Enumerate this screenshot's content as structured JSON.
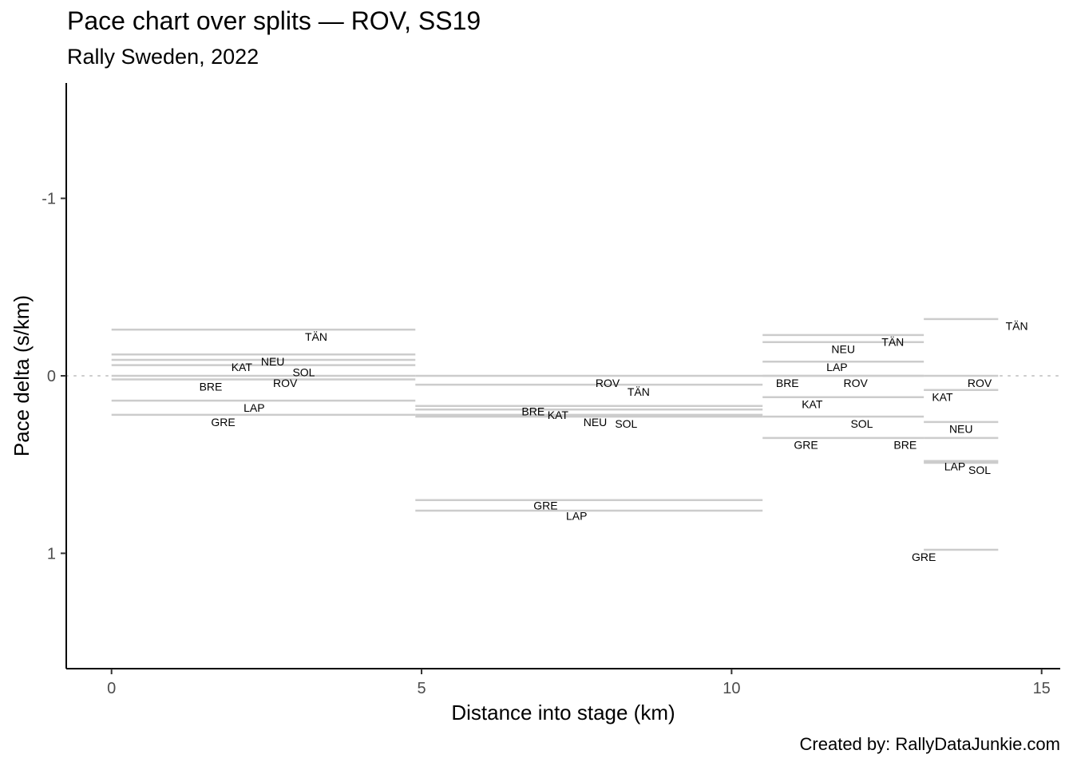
{
  "chart_data": {
    "type": "line",
    "title": "Pace chart over splits — ROV, SS19",
    "subtitle": "Rally Sweden, 2022",
    "caption": "Created by: RallyDataJunkie.com",
    "xlabel": "Distance into stage (km)",
    "ylabel": "Pace delta (s/km)",
    "xlim": [
      -0.73,
      15.3
    ],
    "ylim": [
      1.65,
      -1.65
    ],
    "y_reversed": true,
    "xticks": [
      0,
      5,
      10,
      15
    ],
    "yticks": [
      -1,
      0,
      1
    ],
    "ytick_labels": [
      "-1",
      "0",
      "1"
    ],
    "grid": false,
    "reference_line": 0,
    "splits": [
      {
        "start": 0,
        "end": 4.9
      },
      {
        "start": 4.9,
        "end": 10.5
      },
      {
        "start": 10.5,
        "end": 13.1
      },
      {
        "start": 13.1,
        "end": 14.3
      }
    ],
    "series": [
      {
        "name": "TÄN",
        "values": [
          -0.26,
          0.05,
          -0.23,
          -0.32
        ],
        "label_x": [
          3.3,
          8.5,
          12.6,
          14.6
        ],
        "label_y": [
          -0.22,
          0.09,
          -0.19,
          -0.28
        ]
      },
      {
        "name": "NEU",
        "values": [
          -0.12,
          0.22,
          -0.19,
          0.26
        ],
        "label_x": [
          2.6,
          7.8,
          11.8,
          13.7
        ],
        "label_y": [
          -0.08,
          0.26,
          -0.15,
          0.3
        ]
      },
      {
        "name": "KAT",
        "values": [
          -0.09,
          0.19,
          0.12,
          0.08
        ],
        "label_x": [
          2.1,
          7.2,
          11.3,
          13.4
        ],
        "label_y": [
          -0.05,
          0.22,
          0.16,
          0.12
        ]
      },
      {
        "name": "SOL",
        "values": [
          -0.06,
          0.23,
          0.23,
          0.49
        ],
        "label_x": [
          3.1,
          8.3,
          12.1,
          14.0
        ],
        "label_y": [
          -0.02,
          0.27,
          0.27,
          0.53
        ]
      },
      {
        "name": "ROV",
        "values": [
          0,
          0,
          0,
          0
        ],
        "label_x": [
          2.8,
          8.0,
          12.0,
          14.0
        ],
        "label_y": [
          0.04,
          0.04,
          0.04,
          0.04
        ]
      },
      {
        "name": "BRE",
        "values": [
          0.02,
          0.17,
          0,
          0.35
        ],
        "label_x": [
          1.6,
          6.8,
          10.9,
          12.8
        ],
        "label_y": [
          0.06,
          0.2,
          0.04,
          0.39
        ]
      },
      {
        "name": "LAP",
        "values": [
          0.14,
          0.76,
          -0.08,
          0.48
        ],
        "label_x": [
          2.3,
          7.5,
          11.7,
          13.6
        ],
        "label_y": [
          0.18,
          0.79,
          -0.05,
          0.51
        ]
      },
      {
        "name": "GRE",
        "values": [
          0.22,
          0.7,
          0.35,
          0.98
        ],
        "label_x": [
          1.8,
          7.0,
          11.2,
          13.1
        ],
        "label_y": [
          0.26,
          0.73,
          0.39,
          1.02
        ]
      }
    ]
  }
}
